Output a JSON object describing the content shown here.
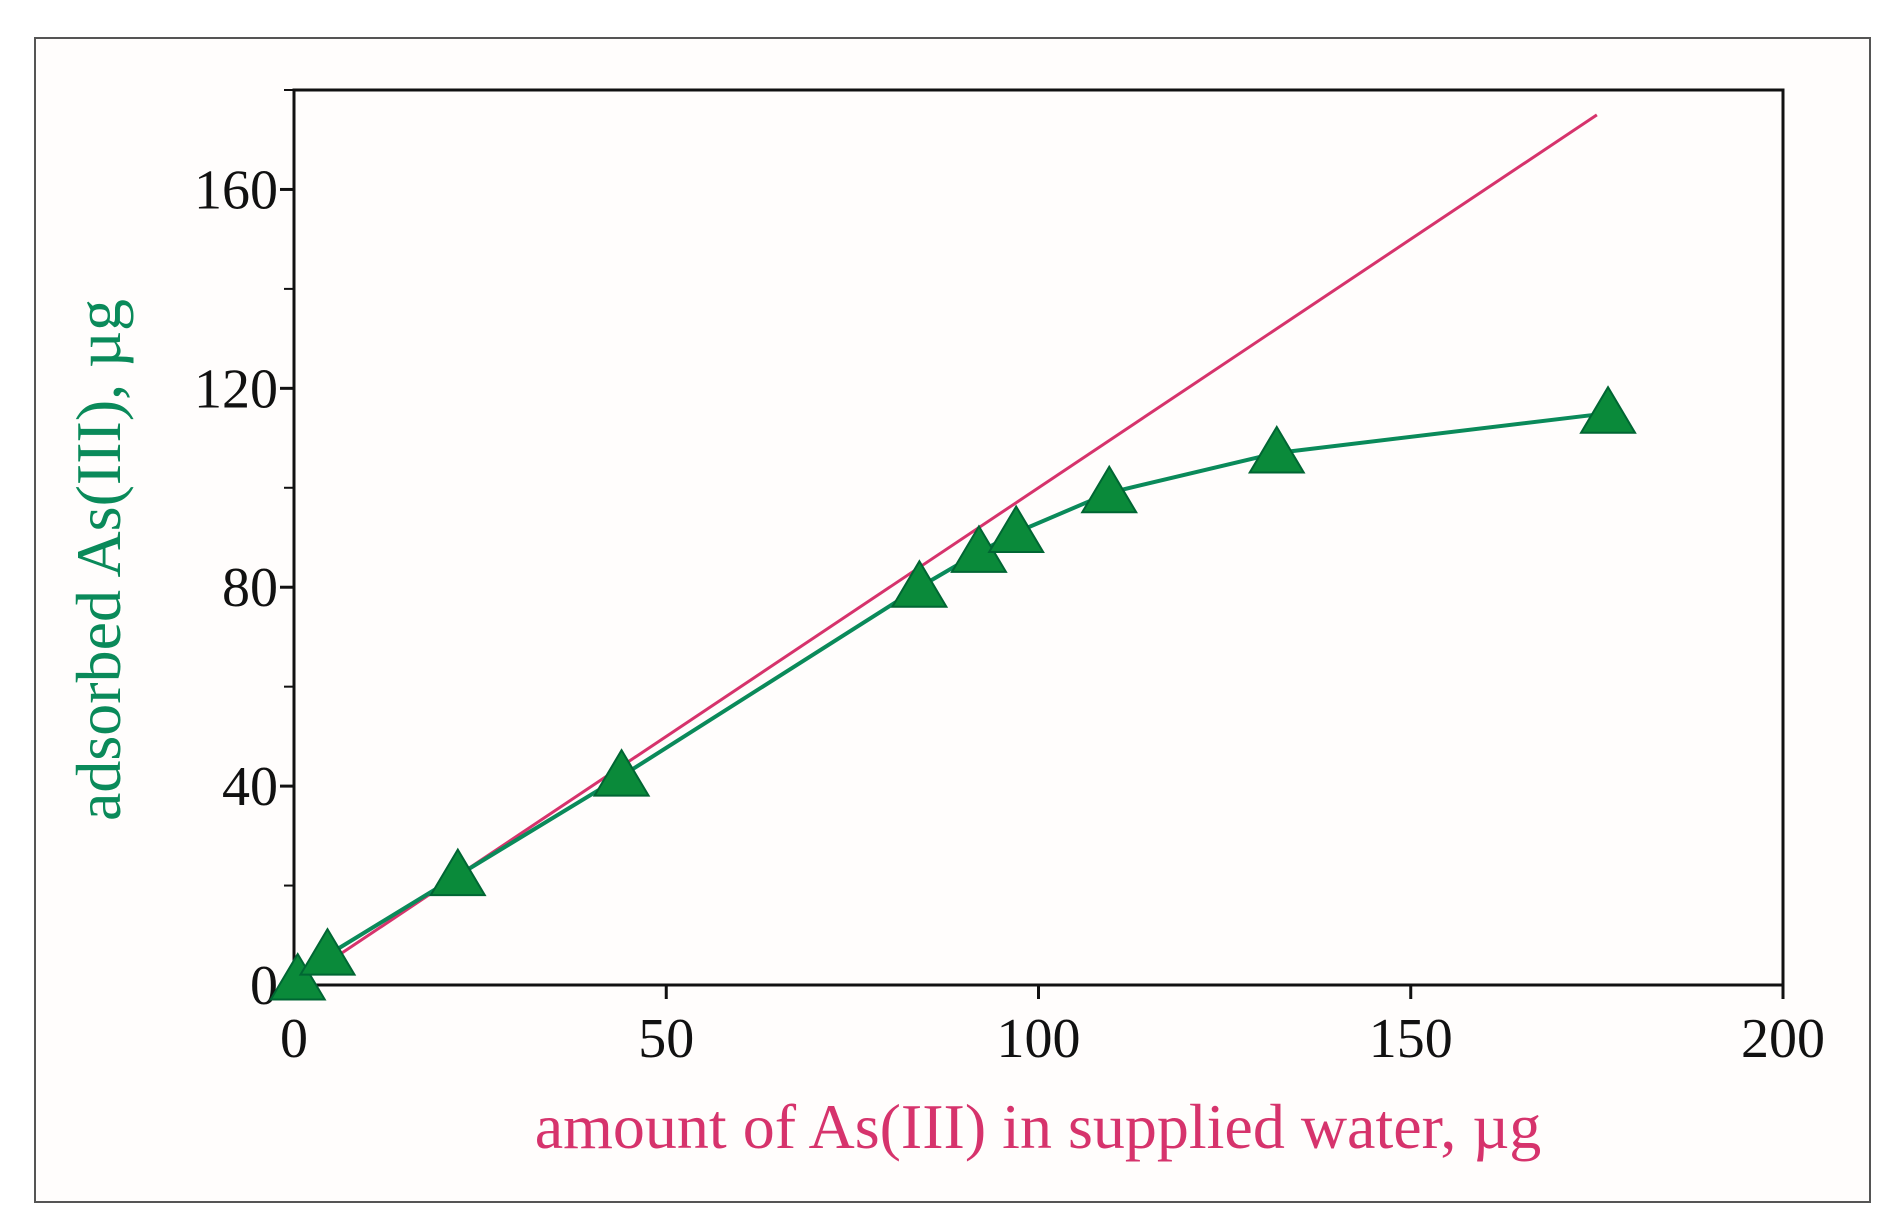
{
  "chart_data": {
    "type": "line",
    "title": "",
    "xlabel": "amount of As(III) in supplied water, µg",
    "ylabel": "adsorbed As(III), µg",
    "xlim": [
      0,
      200
    ],
    "ylim": [
      0,
      180
    ],
    "xticks": [
      0,
      50,
      100,
      150,
      200
    ],
    "yticks": [
      0,
      40,
      80,
      120,
      160
    ],
    "yminor": [
      20,
      60,
      100,
      140,
      180
    ],
    "grid": false,
    "colors": {
      "xlabel": "#d6336c",
      "ylabel": "#0a8a5a",
      "reference": "#d6336c",
      "series": "#0a8a5a",
      "marker": "#0a8a3a"
    },
    "series": [
      {
        "marker": "triangle",
        "x": [
          0.5,
          4.5,
          22,
          44,
          84,
          92,
          97,
          109.5,
          132,
          176.5
        ],
        "y": [
          1,
          6,
          22,
          42,
          80,
          87,
          91,
          99,
          107,
          115
        ]
      }
    ],
    "reference_line": {
      "x": [
        0,
        175
      ],
      "y": [
        0,
        175
      ]
    }
  }
}
